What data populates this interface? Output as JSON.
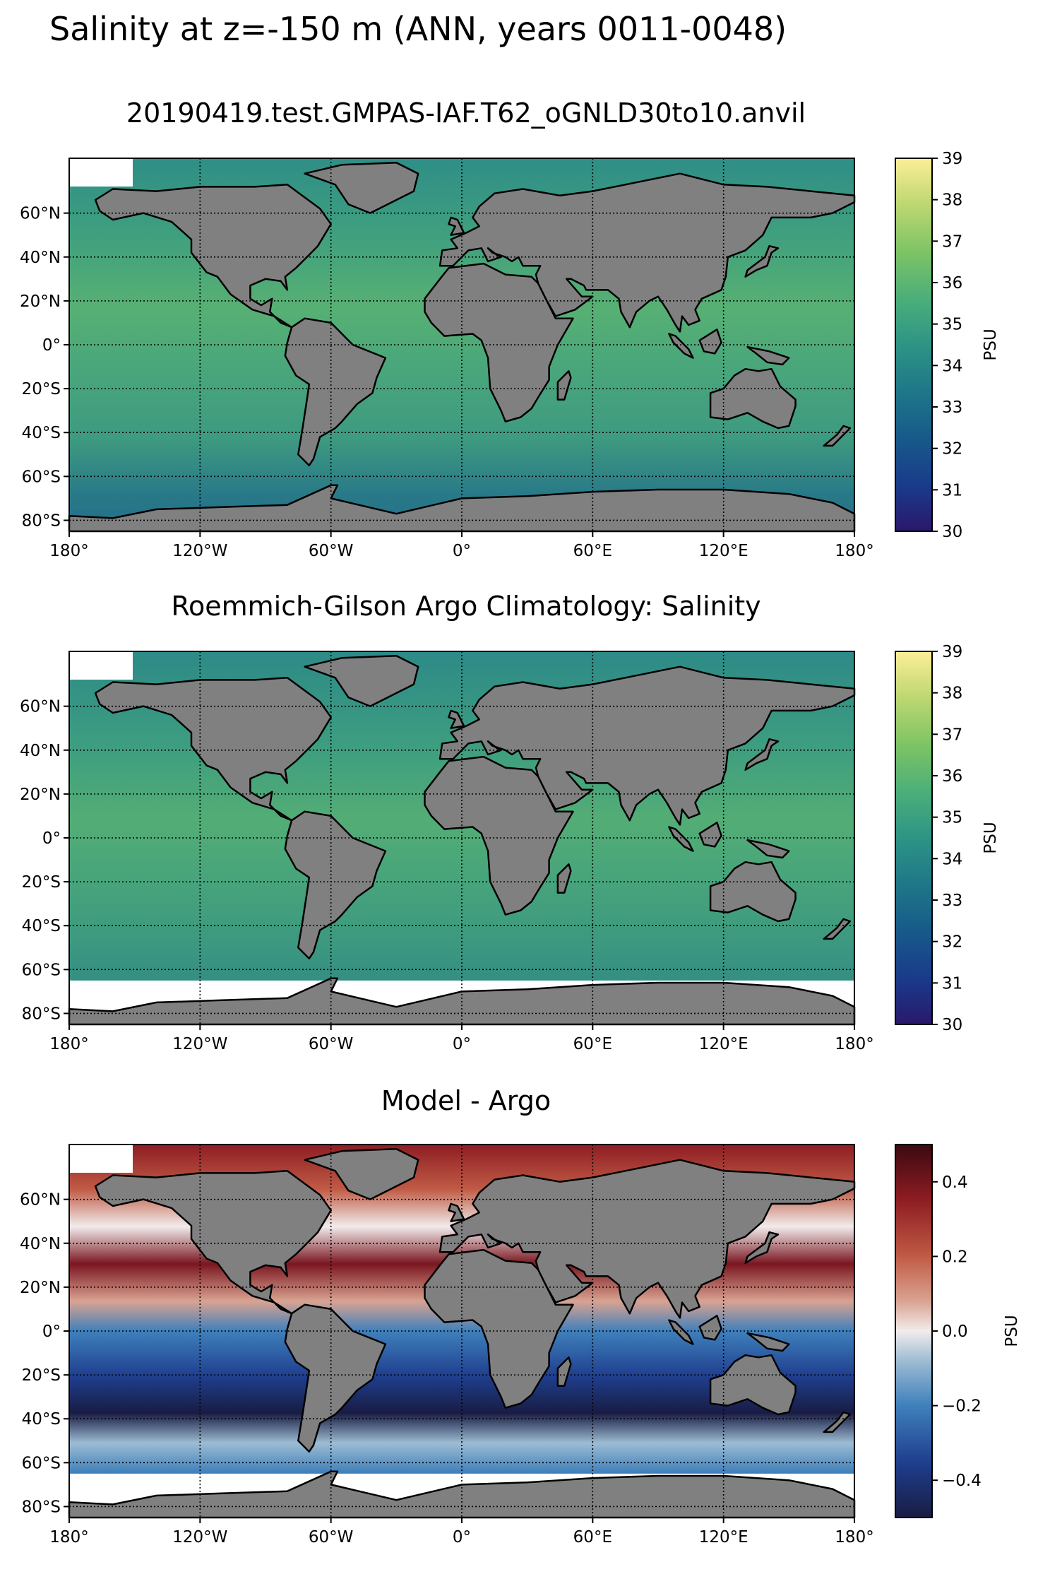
{
  "figure": {
    "title": "Salinity at z=-150 m (ANN, years 0011-0048)"
  },
  "axes": {
    "lon_ticks": [
      "180°",
      "120°W",
      "60°W",
      "0°",
      "60°E",
      "120°E",
      "180°"
    ],
    "lat_ticks": [
      "60°N",
      "40°N",
      "20°N",
      "0°",
      "20°S",
      "40°S",
      "60°S",
      "80°S"
    ]
  },
  "panels": [
    {
      "title": "20190419.test.GMPAS-IAF.T62_oGNLD30to10.anvil",
      "colorbar": {
        "label": "PSU",
        "colormap": "haline",
        "ticks": [
          "30",
          "31",
          "32",
          "33",
          "34",
          "35",
          "36",
          "37",
          "38",
          "39"
        ],
        "range": [
          30,
          39
        ]
      }
    },
    {
      "title": "Roemmich-Gilson Argo Climatology: Salinity",
      "colorbar": {
        "label": "PSU",
        "colormap": "haline",
        "ticks": [
          "30",
          "31",
          "32",
          "33",
          "34",
          "35",
          "36",
          "37",
          "38",
          "39"
        ],
        "range": [
          30,
          39
        ]
      }
    },
    {
      "title": "Model - Argo",
      "colorbar": {
        "label": "PSU",
        "colormap": "balance",
        "ticks": [
          "0.4",
          "0.2",
          "0.0",
          "−0.2",
          "−0.4"
        ],
        "tick_values": [
          0.4,
          0.2,
          0.0,
          -0.2,
          -0.4
        ],
        "range": [
          -0.5,
          0.5
        ]
      }
    }
  ],
  "colors": {
    "land": "#808080",
    "no_data": "#ffffff",
    "haline_low": "#2a186c",
    "haline_high": "#fdee99",
    "balance_low": "#181c43",
    "balance_mid": "#f1ecec",
    "balance_high": "#3c0911"
  }
}
